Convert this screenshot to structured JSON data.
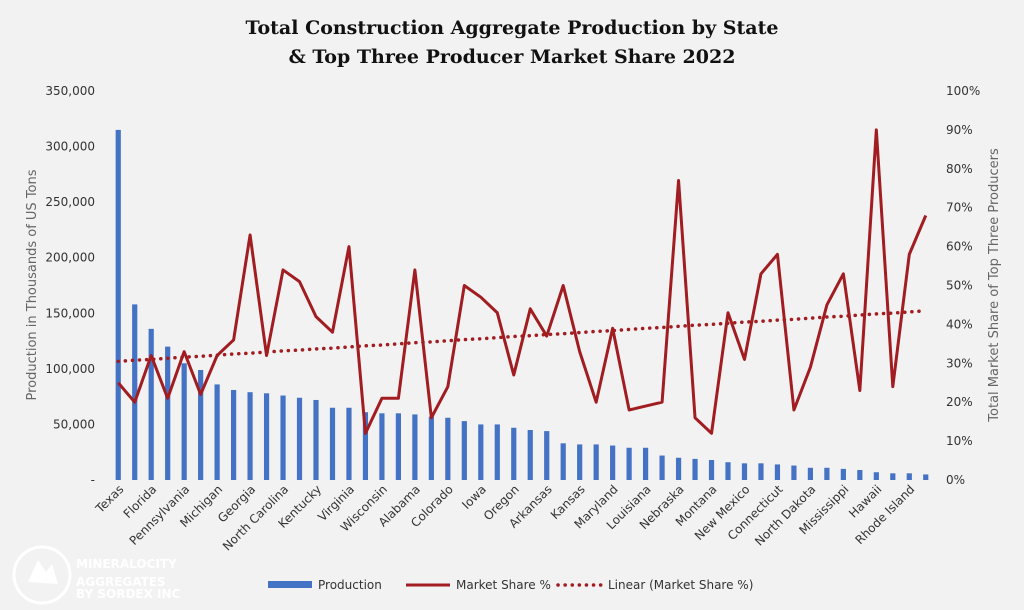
{
  "chart_data": {
    "type": "bar-line",
    "title": "Total Construction Aggregate Production by State",
    "subtitle": "& Top Three Producer Market Share 2022",
    "y_label": "Production in Thousands of US Tons",
    "y2_label": "Total Market Share of Top Three Producers",
    "logo": {
      "name": "MINERALOCITY",
      "line2": "AGGREGATES",
      "tagline": "BY SORDEX INC"
    },
    "categories": [
      "Texas",
      null,
      "Florida",
      null,
      "Pennsylvania",
      null,
      "Michigan",
      null,
      "Georgia",
      null,
      "North Carolina",
      null,
      "Kentucky",
      null,
      "Virginia",
      null,
      "Wisconsin",
      null,
      "Alabama",
      null,
      "Colorado",
      null,
      "Iowa",
      null,
      "Oregon",
      null,
      "Arkansas",
      null,
      "Kansas",
      null,
      "Maryland",
      null,
      "Louisiana",
      null,
      "Nebraska",
      null,
      "Montana",
      null,
      "New Mexico",
      null,
      "Connecticut",
      null,
      "North Dakota",
      null,
      "Mississippi",
      null,
      "Hawaii",
      null,
      "Rhode Island",
      null
    ],
    "series": [
      {
        "name": "Production",
        "color": "#4472c4",
        "kind": "bar",
        "values": [
          315000,
          158000,
          136000,
          120000,
          105000,
          99000,
          86000,
          81000,
          79000,
          78000,
          76000,
          74000,
          72000,
          65000,
          65000,
          61000,
          60000,
          60000,
          59000,
          57000,
          56000,
          53000,
          50000,
          50000,
          47000,
          45000,
          44000,
          33000,
          32000,
          32000,
          31000,
          29000,
          29000,
          22000,
          20000,
          19000,
          18000,
          16000,
          15000,
          15000,
          14000,
          13000,
          11000,
          11000,
          10000,
          9000,
          7000,
          6000,
          6000,
          5000
        ]
      },
      {
        "name": "Market Share %",
        "color": "#a11d21",
        "kind": "line",
        "axis": "y2",
        "values": [
          25,
          20,
          32,
          21,
          33,
          22,
          32,
          36,
          63,
          32,
          54,
          51,
          42,
          38,
          60,
          12,
          21,
          21,
          54,
          16,
          24,
          50,
          47,
          43,
          27,
          44,
          37,
          50,
          33,
          20,
          39,
          18,
          19,
          20,
          77,
          16,
          12,
          43,
          31,
          53,
          58,
          18,
          29,
          45,
          53,
          23,
          90,
          24,
          58,
          68
        ]
      },
      {
        "name": "Linear (Market Share %)",
        "color": "#a11d21",
        "kind": "dotted",
        "axis": "y2",
        "values": [
          30.5,
          30.8,
          31.0,
          31.3,
          31.6,
          31.8,
          32.1,
          32.4,
          32.6,
          32.9,
          33.2,
          33.4,
          33.7,
          33.9,
          34.2,
          34.5,
          34.7,
          35.0,
          35.3,
          35.5,
          35.8,
          36.1,
          36.3,
          36.6,
          36.9,
          37.1,
          37.4,
          37.6,
          37.9,
          38.2,
          38.4,
          38.7,
          39.0,
          39.2,
          39.5,
          39.8,
          40.0,
          40.3,
          40.6,
          40.8,
          41.1,
          41.3,
          41.6,
          41.9,
          42.1,
          42.4,
          42.7,
          42.9,
          43.2,
          43.5
        ]
      }
    ],
    "ylim": [
      0,
      350000
    ],
    "yticks": [
      {
        "value": 0,
        "label": "-"
      },
      {
        "value": 50000,
        "label": "50,000"
      },
      {
        "value": 100000,
        "label": "100,000"
      },
      {
        "value": 150000,
        "label": "150,000"
      },
      {
        "value": 200000,
        "label": "200,000"
      },
      {
        "value": 250000,
        "label": "250,000"
      },
      {
        "value": 300000,
        "label": "300,000"
      },
      {
        "value": 350000,
        "label": "350,000"
      }
    ],
    "y2lim": [
      0,
      100
    ],
    "y2ticks": [
      {
        "value": 0,
        "label": "0%"
      },
      {
        "value": 10,
        "label": "10%"
      },
      {
        "value": 20,
        "label": "20%"
      },
      {
        "value": 30,
        "label": "30%"
      },
      {
        "value": 40,
        "label": "40%"
      },
      {
        "value": 50,
        "label": "50%"
      },
      {
        "value": 60,
        "label": "60%"
      },
      {
        "value": 70,
        "label": "70%"
      },
      {
        "value": 80,
        "label": "80%"
      },
      {
        "value": 90,
        "label": "90%"
      },
      {
        "value": 100,
        "label": "100%"
      }
    ],
    "legend": "bottom"
  }
}
